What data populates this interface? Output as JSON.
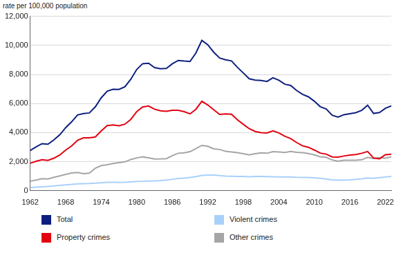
{
  "chart_data": {
    "type": "line",
    "y_label": "rate per 100,000 population",
    "x": [
      1962,
      1963,
      1964,
      1965,
      1966,
      1967,
      1968,
      1969,
      1970,
      1971,
      1972,
      1973,
      1974,
      1975,
      1976,
      1977,
      1978,
      1979,
      1980,
      1981,
      1982,
      1983,
      1984,
      1985,
      1986,
      1987,
      1988,
      1989,
      1990,
      1991,
      1992,
      1993,
      1994,
      1995,
      1996,
      1997,
      1998,
      1999,
      2000,
      2001,
      2002,
      2003,
      2004,
      2005,
      2006,
      2007,
      2008,
      2009,
      2010,
      2011,
      2012,
      2013,
      2014,
      2015,
      2016,
      2017,
      2018,
      2019,
      2020,
      2021,
      2022,
      2023
    ],
    "xlim": [
      1962,
      2023
    ],
    "xticks": [
      1962,
      1968,
      1974,
      1980,
      1986,
      1992,
      1998,
      2004,
      2010,
      2016,
      2022
    ],
    "ylim": [
      0,
      12000
    ],
    "yticks": [
      0,
      {
        "value": 2000,
        "label": "2,000"
      },
      {
        "value": 4000,
        "label": "4,000"
      },
      {
        "value": 6000,
        "label": "6,000"
      },
      {
        "value": 8000,
        "label": "8,000"
      },
      {
        "value": 10000,
        "label": "10,000"
      },
      {
        "value": 12000,
        "label": "12,000"
      }
    ],
    "grid": true,
    "legend": "bottom",
    "series": [
      {
        "name": "Total",
        "color": "#0c1f7f",
        "values": [
          2770,
          3020,
          3240,
          3200,
          3500,
          3850,
          4340,
          4740,
          5210,
          5310,
          5350,
          5770,
          6390,
          6850,
          6980,
          6970,
          7150,
          7670,
          8340,
          8740,
          8770,
          8470,
          8390,
          8410,
          8730,
          8960,
          8920,
          8890,
          9480,
          10340,
          10040,
          9530,
          9130,
          9010,
          8930,
          8490,
          8100,
          7700,
          7610,
          7590,
          7520,
          7770,
          7600,
          7330,
          7240,
          6900,
          6630,
          6460,
          6160,
          5780,
          5630,
          5200,
          5060,
          5230,
          5300,
          5370,
          5530,
          5880,
          5320,
          5380,
          5670,
          5840
        ]
      },
      {
        "name": "Property crimes",
        "color": "#e3000f",
        "values": [
          1890,
          2030,
          2130,
          2090,
          2240,
          2460,
          2800,
          3080,
          3470,
          3640,
          3640,
          3700,
          4110,
          4480,
          4530,
          4470,
          4580,
          4910,
          5440,
          5760,
          5830,
          5610,
          5500,
          5460,
          5530,
          5540,
          5440,
          5290,
          5610,
          6160,
          5900,
          5570,
          5250,
          5290,
          5260,
          4880,
          4570,
          4270,
          4080,
          4000,
          3970,
          4120,
          3980,
          3750,
          3590,
          3320,
          3090,
          2990,
          2800,
          2590,
          2520,
          2330,
          2310,
          2390,
          2450,
          2490,
          2580,
          2700,
          2250,
          2200,
          2480,
          2520
        ]
      },
      {
        "name": "Violent crimes",
        "color": "#a9d0fb",
        "values": [
          220,
          250,
          280,
          300,
          330,
          370,
          410,
          440,
          480,
          490,
          500,
          520,
          550,
          580,
          580,
          570,
          580,
          610,
          640,
          650,
          670,
          680,
          700,
          740,
          790,
          840,
          870,
          910,
          970,
          1060,
          1080,
          1080,
          1040,
          1010,
          1000,
          990,
          980,
          960,
          980,
          980,
          970,
          960,
          950,
          950,
          950,
          930,
          920,
          910,
          890,
          850,
          810,
          750,
          720,
          740,
          750,
          780,
          820,
          880,
          850,
          900,
          950,
          980
        ]
      },
      {
        "name": "Other crimes",
        "color": "#a5a5a5",
        "values": [
          660,
          740,
          830,
          810,
          930,
          1020,
          1130,
          1220,
          1260,
          1180,
          1210,
          1550,
          1730,
          1790,
          1870,
          1930,
          1990,
          2150,
          2260,
          2330,
          2270,
          2180,
          2190,
          2210,
          2410,
          2580,
          2610,
          2690,
          2900,
          3120,
          3060,
          2880,
          2840,
          2710,
          2670,
          2620,
          2550,
          2470,
          2550,
          2610,
          2580,
          2690,
          2670,
          2630,
          2700,
          2650,
          2620,
          2560,
          2470,
          2340,
          2300,
          2120,
          2030,
          2100,
          2100,
          2100,
          2130,
          2300,
          2220,
          2280,
          2240,
          2340
        ]
      }
    ]
  }
}
